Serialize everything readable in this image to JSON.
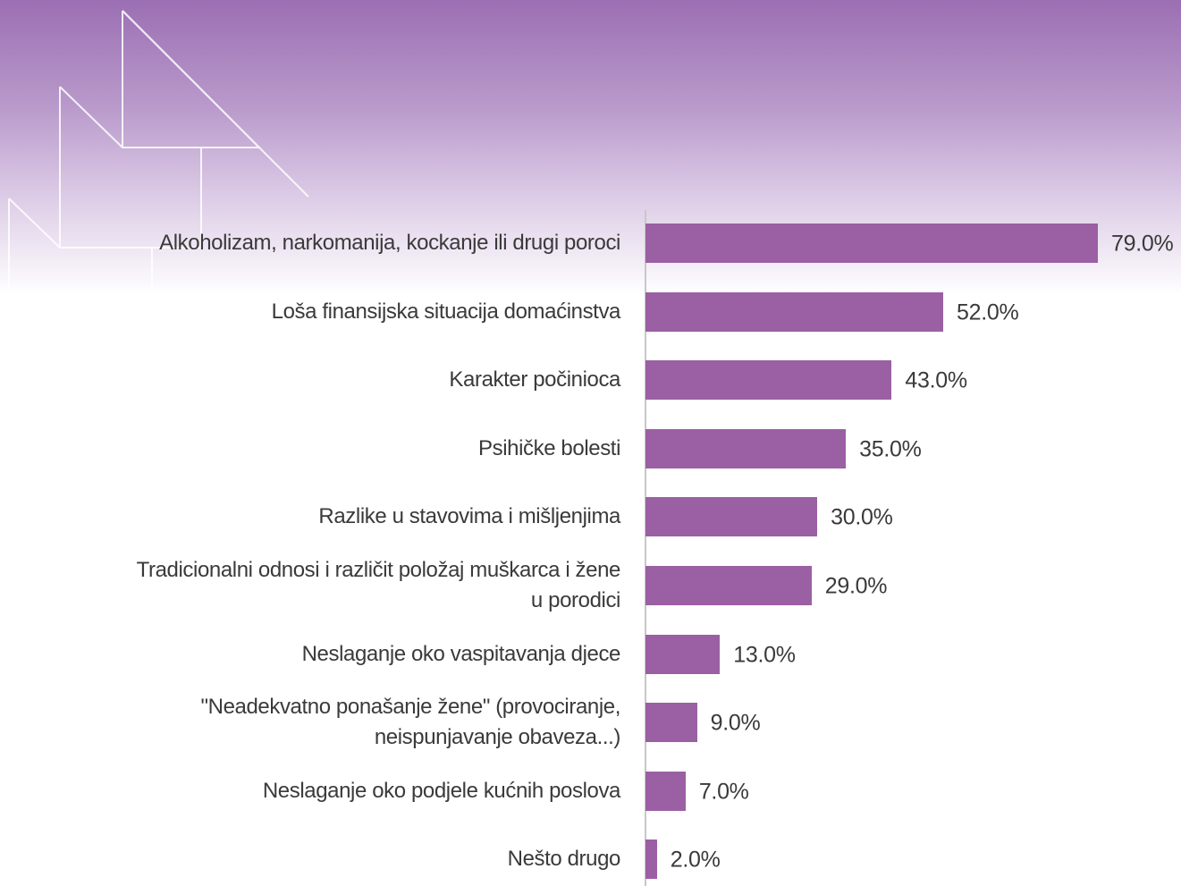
{
  "chart_data": {
    "type": "bar",
    "orientation": "horizontal",
    "categories": [
      "Alkoholizam, narkomanija, kockanje ili drugi poroci",
      "Loša finansijska situacija domaćinstva",
      "Karakter počinioca",
      "Psihičke bolesti",
      "Razlike u stavovima i mišljenjima",
      "Tradicionalni odnosi i različit položaj muškarca i žene u porodici",
      "Neslaganje oko vaspitavanja djece",
      "\"Neadekvatno ponašanje žene\" (provociranje, neispunjavanje obaveza...)",
      "Neslaganje oko podjele kućnih poslova",
      "Nešto drugo"
    ],
    "values": [
      79,
      52,
      43,
      35,
      30,
      29,
      13,
      9,
      7,
      2
    ],
    "value_labels": [
      "79.0%",
      "52.0%",
      "43.0%",
      "35.0%",
      "30.0%",
      "29.0%",
      "13.0%",
      "9.0%",
      "7.0%",
      "2.0%"
    ],
    "color": "#9b5fa3"
  }
}
